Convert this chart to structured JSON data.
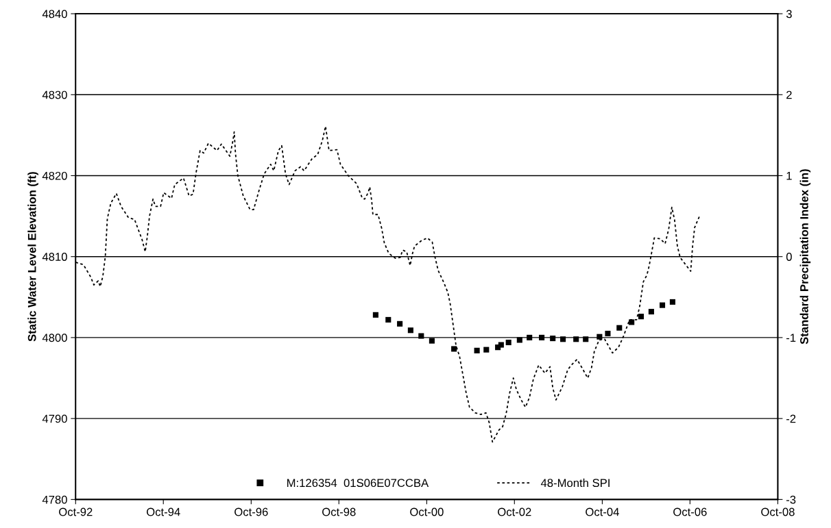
{
  "chart_data": {
    "type": "scatter",
    "ylabel": "Static Water Level Elevation (ft)",
    "y2label": "Standard Precipitation Index (in)",
    "xlim": [
      "1992-10-01",
      "2008-10-01"
    ],
    "xticks": [
      {
        "value": "1992-10-01",
        "label": "Oct-92"
      },
      {
        "value": "1994-10-01",
        "label": "Oct-94"
      },
      {
        "value": "1996-10-01",
        "label": "Oct-96"
      },
      {
        "value": "1998-10-01",
        "label": "Oct-98"
      },
      {
        "value": "2000-10-01",
        "label": "Oct-00"
      },
      {
        "value": "2002-10-01",
        "label": "Oct-02"
      },
      {
        "value": "2004-10-01",
        "label": "Oct-04"
      },
      {
        "value": "2006-10-01",
        "label": "Oct-06"
      },
      {
        "value": "2008-10-01",
        "label": "Oct-08"
      }
    ],
    "ylim": [
      4780,
      4840
    ],
    "yticks": [
      4780,
      4790,
      4800,
      4810,
      4820,
      4830,
      4840
    ],
    "y2lim": [
      -3,
      3
    ],
    "y2ticks": [
      -3,
      -2,
      -1,
      0,
      1,
      2,
      3
    ],
    "grid": "y",
    "legend": "bottom",
    "series": [
      {
        "name": "M:126354  01S06E07CCBA",
        "color": "#000000",
        "marker": "square",
        "axis": "y",
        "x": [
          "1999-08-03",
          "1999-11-16",
          "2000-02-20",
          "2000-05-20",
          "2000-08-16",
          "2000-11-13",
          "2001-05-16",
          "2001-11-23",
          "2002-02-09",
          "2002-05-16",
          "2002-06-12",
          "2002-08-13",
          "2002-11-13",
          "2003-02-03",
          "2003-05-16",
          "2003-08-16",
          "2003-11-09",
          "2004-02-26",
          "2004-05-16",
          "2004-09-08",
          "2004-11-16",
          "2005-02-20",
          "2005-06-02",
          "2005-08-20",
          "2005-11-13",
          "2006-02-13",
          "2006-05-09"
        ],
        "values": [
          4802.8,
          4802.2,
          4801.7,
          4800.9,
          4800.2,
          4799.6,
          4798.6,
          4798.4,
          4798.5,
          4798.8,
          4799.1,
          4799.4,
          4799.7,
          4800.0,
          4800.0,
          4799.9,
          4799.8,
          4799.8,
          4799.8,
          4800.1,
          4800.5,
          4801.2,
          4801.9,
          4802.6,
          4803.2,
          4804.0,
          4804.4
        ]
      },
      {
        "name": "48-Month SPI",
        "type": "line",
        "color": "#000000",
        "line_style": "dotted",
        "axis": "y2",
        "x": [
          "1992-10-01",
          "1992-12-05",
          "1993-02-03",
          "1993-03-02",
          "1993-04-07",
          "1993-04-24",
          "1993-05-16",
          "1993-06-05",
          "1993-06-22",
          "1993-07-21",
          "1993-09-05",
          "1993-10-14",
          "1993-12-15",
          "1994-02-03",
          "1994-03-15",
          "1994-04-07",
          "1994-05-03",
          "1994-05-20",
          "1994-06-08",
          "1994-07-07",
          "1994-07-27",
          "1994-09-08",
          "1994-10-04",
          "1994-12-08",
          "1995-01-04",
          "1995-03-18",
          "1995-05-03",
          "1995-06-05",
          "1995-07-01",
          "1995-08-03",
          "1995-09-02",
          "1995-10-11",
          "1995-12-22",
          "1996-01-27",
          "1996-04-07",
          "1996-05-03",
          "1996-05-13",
          "1996-05-23",
          "1996-06-12",
          "1996-07-27",
          "1996-09-22",
          "1996-10-21",
          "1996-12-08",
          "1997-01-17",
          "1997-03-12",
          "1997-04-07",
          "1997-05-16",
          "1997-06-12",
          "1997-07-14",
          "1997-08-13",
          "1997-10-01",
          "1997-11-16",
          "1997-12-15",
          "1998-02-20",
          "1998-04-07",
          "1998-05-16",
          "1998-06-12",
          "1998-07-11",
          "1998-09-15",
          "1998-10-14",
          "1998-12-18",
          "1999-02-26",
          "1999-04-14",
          "1999-05-03",
          "1999-06-02",
          "1999-06-15",
          "1999-07-01",
          "1999-07-11",
          "1999-08-23",
          "1999-09-22",
          "1999-10-14",
          "1999-11-20",
          "2000-01-14",
          "2000-02-23",
          "2000-03-15",
          "2000-04-17",
          "2000-05-16",
          "2000-06-05",
          "2000-06-22",
          "2000-08-20",
          "2000-10-07",
          "2000-11-16",
          "2000-12-08",
          "2001-01-04",
          "2001-02-20",
          "2001-03-25",
          "2001-04-14",
          "2001-06-02",
          "2001-07-01",
          "2001-08-26",
          "2001-09-22",
          "2001-11-09",
          "2001-12-25",
          "2002-02-06",
          "2002-03-05",
          "2002-04-01",
          "2002-05-26",
          "2002-06-25",
          "2002-07-24",
          "2002-08-23",
          "2002-09-22",
          "2002-10-17",
          "2002-11-26",
          "2003-01-01",
          "2003-02-03",
          "2003-03-08",
          "2003-04-21",
          "2003-06-12",
          "2003-07-24",
          "2003-08-16",
          "2003-09-12",
          "2003-11-03",
          "2003-12-18",
          "2004-01-17",
          "2004-03-05",
          "2004-04-14",
          "2004-06-02",
          "2004-07-04",
          "2004-07-27",
          "2004-09-05",
          "2004-10-21",
          "2004-12-25",
          "2005-02-13",
          "2005-03-25",
          "2005-05-16",
          "2005-07-14",
          "2005-08-09",
          "2005-09-08",
          "2005-10-07",
          "2005-10-24",
          "2005-11-16",
          "2005-12-08",
          "2006-01-27",
          "2006-03-08",
          "2006-04-07",
          "2006-05-03",
          "2006-05-26",
          "2006-06-18",
          "2006-07-11",
          "2006-08-26",
          "2006-10-07",
          "2006-10-24",
          "2006-11-09",
          "2006-12-25"
        ],
        "values": [
          -0.07,
          -0.1,
          -0.25,
          -0.35,
          -0.3,
          -0.37,
          -0.24,
          0.0,
          0.47,
          0.66,
          0.78,
          0.62,
          0.48,
          0.46,
          0.3,
          0.21,
          0.06,
          0.24,
          0.5,
          0.71,
          0.62,
          0.62,
          0.79,
          0.72,
          0.89,
          0.97,
          0.75,
          0.77,
          1.04,
          1.31,
          1.28,
          1.4,
          1.31,
          1.39,
          1.24,
          1.44,
          1.54,
          1.28,
          1.0,
          0.75,
          0.58,
          0.58,
          0.83,
          1.02,
          1.14,
          1.06,
          1.31,
          1.37,
          1.02,
          0.89,
          1.06,
          1.11,
          1.06,
          1.21,
          1.26,
          1.43,
          1.61,
          1.31,
          1.32,
          1.14,
          1.0,
          0.9,
          0.72,
          0.71,
          0.79,
          0.86,
          0.69,
          0.52,
          0.52,
          0.35,
          0.17,
          0.04,
          -0.02,
          -0.01,
          0.08,
          0.06,
          -0.11,
          0.04,
          0.13,
          0.2,
          0.23,
          0.18,
          0.0,
          -0.17,
          -0.32,
          -0.44,
          -0.58,
          -1.1,
          -1.23,
          -1.69,
          -1.86,
          -1.93,
          -1.95,
          -1.93,
          -2.05,
          -2.29,
          -2.14,
          -2.1,
          -1.94,
          -1.68,
          -1.5,
          -1.64,
          -1.77,
          -1.86,
          -1.74,
          -1.51,
          -1.34,
          -1.44,
          -1.36,
          -1.62,
          -1.77,
          -1.61,
          -1.4,
          -1.34,
          -1.27,
          -1.37,
          -1.5,
          -1.37,
          -1.17,
          -1.03,
          -1.02,
          -1.19,
          -1.12,
          -0.99,
          -0.78,
          -0.78,
          -0.61,
          -0.31,
          -0.23,
          -0.13,
          0.05,
          0.23,
          0.22,
          0.16,
          0.34,
          0.61,
          0.45,
          0.13,
          -0.01,
          -0.1,
          -0.18,
          0.15,
          0.36,
          0.52
        ]
      }
    ]
  }
}
